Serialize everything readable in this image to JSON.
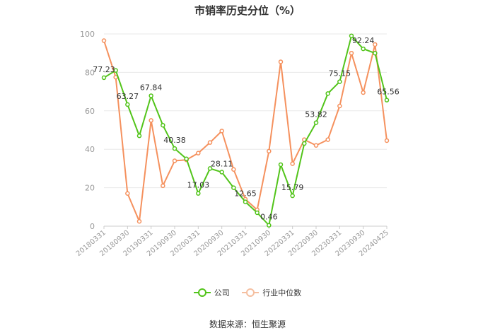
{
  "page": {
    "title": "市销率历史分位（%）",
    "source": "数据来源：恒生聚源"
  },
  "colors": {
    "company": "#52c41a",
    "industry": "#f5915e",
    "grid": "#e8e8e8",
    "axis_text": "#999999",
    "label_text": "#333333"
  },
  "chart_data": {
    "type": "line",
    "title": "市销率历史分位（%）",
    "xlabel": "",
    "ylabel": "",
    "ylim": [
      0,
      100
    ],
    "yticks": [
      0,
      20,
      40,
      60,
      80,
      100
    ],
    "grid": true,
    "legend_position": "bottom",
    "x": [
      "20180331",
      "20180630",
      "20180930",
      "20181231",
      "20190331",
      "20190630",
      "20190930",
      "20191231",
      "20200331",
      "20200630",
      "20200930",
      "20201231",
      "20210331",
      "20210630",
      "20210930",
      "20211231",
      "20220331",
      "20220630",
      "20220930",
      "20221231",
      "20230331",
      "20230630",
      "20230930",
      "20231231",
      "20240425"
    ],
    "x_tick_labels": [
      "20180331",
      "20180930",
      "20190331",
      "20190930",
      "20200331",
      "20200930",
      "20210331",
      "20210930",
      "20220331",
      "20220930",
      "20230331",
      "20230930",
      "20240425"
    ],
    "series": [
      {
        "name": "公司",
        "color": "#52c41a",
        "values": [
          77.23,
          81,
          63.27,
          47,
          67.84,
          52.5,
          40.38,
          35,
          17.03,
          30,
          28.11,
          20,
          12.65,
          7,
          0.46,
          32,
          15.79,
          43,
          53.82,
          69,
          75.15,
          99,
          92.24,
          90,
          65.56
        ]
      },
      {
        "name": "行业中位数",
        "color": "#f5915e",
        "values": [
          96.5,
          77.5,
          17,
          2.5,
          55,
          21,
          34,
          34.5,
          38,
          43.5,
          49.5,
          29.5,
          14,
          8.5,
          39,
          85.5,
          32.5,
          45,
          42,
          45,
          62.5,
          90,
          69.5,
          94.5,
          44.5
        ]
      }
    ],
    "annotations": [
      {
        "series": 0,
        "index": 0,
        "text": "77.23"
      },
      {
        "series": 0,
        "index": 2,
        "text": "63.27"
      },
      {
        "series": 0,
        "index": 4,
        "text": "67.84"
      },
      {
        "series": 0,
        "index": 6,
        "text": "40.38"
      },
      {
        "series": 0,
        "index": 8,
        "text": "17.03"
      },
      {
        "series": 0,
        "index": 10,
        "text": "28.11"
      },
      {
        "series": 0,
        "index": 12,
        "text": "12.65"
      },
      {
        "series": 0,
        "index": 14,
        "text": "0.46"
      },
      {
        "series": 0,
        "index": 16,
        "text": "15.79"
      },
      {
        "series": 0,
        "index": 18,
        "text": "53.82"
      },
      {
        "series": 0,
        "index": 20,
        "text": "75.15"
      },
      {
        "series": 0,
        "index": 22,
        "text": "92.24"
      },
      {
        "series": 0,
        "index": 24,
        "text": "65.56"
      }
    ]
  }
}
